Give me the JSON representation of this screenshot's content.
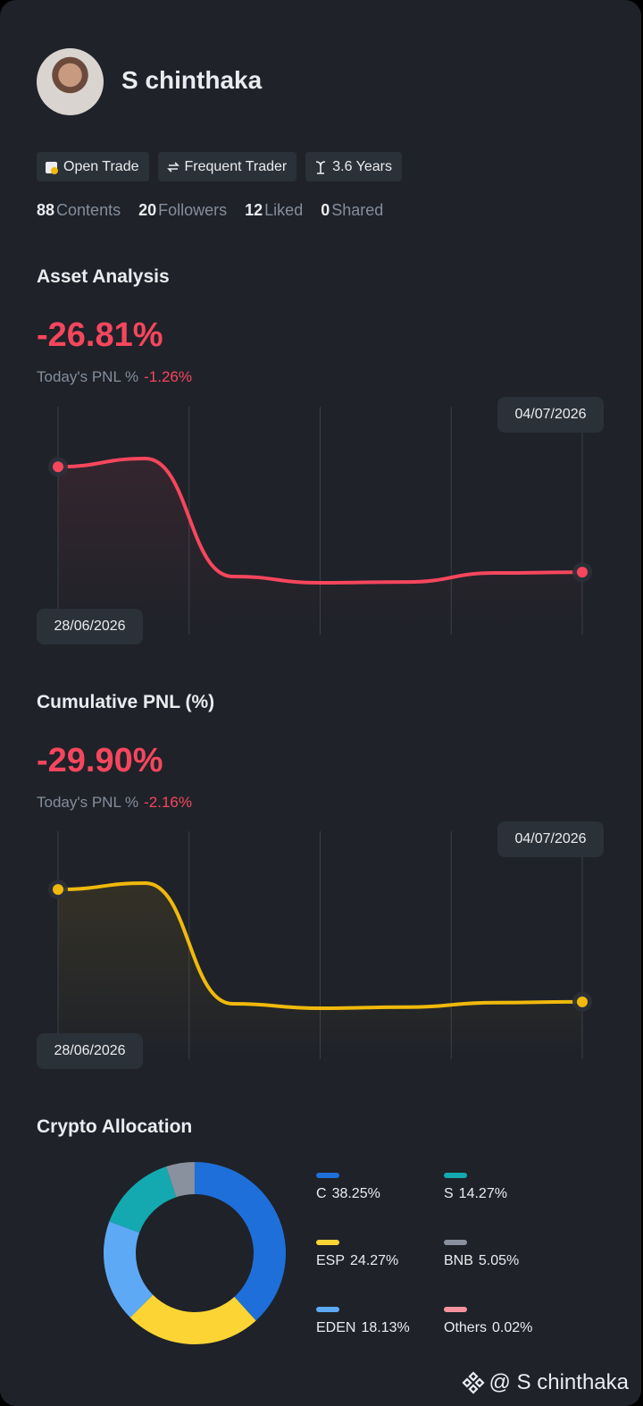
{
  "profile": {
    "name": "S chinthaka",
    "tags": [
      "Open Trade",
      "Frequent Trader",
      "3.6 Years"
    ],
    "stats": [
      {
        "value": 88,
        "label": "Contents"
      },
      {
        "value": 20,
        "label": "Followers"
      },
      {
        "value": 12,
        "label": "Liked"
      },
      {
        "value": 0,
        "label": "Shared"
      }
    ]
  },
  "asset_analysis": {
    "title": "Asset Analysis",
    "value": "-26.81%",
    "todays_label": "Today's PNL %",
    "todays_value": "-1.26%",
    "chart": {
      "type": "line",
      "color": "#f6465d",
      "categories": [
        "28/06/2026",
        null,
        null,
        null,
        null,
        null,
        "04/07/2026"
      ],
      "values": [
        0,
        2.1,
        -27.9,
        -29.5,
        -29.3,
        -27.0,
        -26.81
      ]
    }
  },
  "cumulative_pnl": {
    "title": "Cumulative PNL (%)",
    "value": "-29.90%",
    "todays_label": "Today's PNL %",
    "todays_value": "-2.16%",
    "chart": {
      "type": "line",
      "color": "#f0b90b",
      "categories": [
        "28/06/2026",
        null,
        null,
        null,
        null,
        null,
        "04/07/2026"
      ],
      "values": [
        0,
        1.7,
        -30.4,
        -31.6,
        -31.3,
        -30.1,
        -29.9
      ]
    }
  },
  "crypto_allocation": {
    "title": "Crypto Allocation",
    "chart": {
      "type": "donut",
      "series": [
        {
          "name": "C",
          "color": "#1e6fd9",
          "values": [
            38.25
          ],
          "value_labels": [
            "38.25%"
          ]
        },
        {
          "name": "ESP",
          "color": "#fcd535",
          "values": [
            24.27
          ],
          "value_labels": [
            "24.27%"
          ]
        },
        {
          "name": "EDEN",
          "color": "#5ea9f5",
          "values": [
            18.13
          ],
          "value_labels": [
            "18.13%"
          ]
        },
        {
          "name": "S",
          "color": "#14a9b0",
          "values": [
            14.27
          ],
          "value_labels": [
            "14.27%"
          ]
        },
        {
          "name": "BNB",
          "color": "#8a919e",
          "values": [
            5.05
          ],
          "value_labels": [
            "5.05%"
          ]
        },
        {
          "name": "Others",
          "color": "#f6939f",
          "values": [
            0.02
          ],
          "value_labels": [
            "0.02%"
          ]
        }
      ]
    }
  },
  "watermark": "@ S chinthaka"
}
